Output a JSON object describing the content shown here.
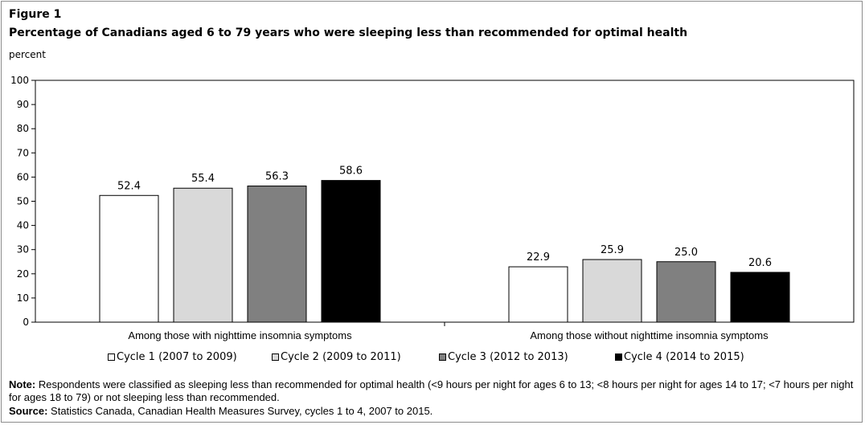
{
  "figure": {
    "label": "Figure 1",
    "title": "Percentage of Canadians aged 6 to 79 years who were sleeping less than recommended for optimal health",
    "unit": "percent"
  },
  "chart_data": {
    "type": "bar",
    "categories": [
      "Among those with nighttime insomnia symptoms",
      "Among those without nighttime insomnia symptoms"
    ],
    "series": [
      {
        "name": "Cycle 1 (2007 to 2009)",
        "values": [
          52.4,
          22.9
        ],
        "labels": [
          "52.4",
          "22.9"
        ],
        "color": "#ffffff"
      },
      {
        "name": "Cycle 2 (2009 to 2011)",
        "values": [
          55.4,
          25.9
        ],
        "labels": [
          "55.4",
          "25.9"
        ],
        "color": "#d9d9d9"
      },
      {
        "name": "Cycle 3 (2012 to 2013)",
        "values": [
          56.3,
          25.0
        ],
        "labels": [
          "56.3",
          "25.0"
        ],
        "color": "#808080"
      },
      {
        "name": "Cycle 4 (2014 to 2015)",
        "values": [
          58.6,
          20.6
        ],
        "labels": [
          "58.6",
          "20.6"
        ],
        "color": "#000000"
      }
    ],
    "ylim": [
      0,
      100
    ],
    "yticks": [
      "0",
      "10",
      "20",
      "30",
      "40",
      "50",
      "60",
      "70",
      "80",
      "90",
      "100"
    ],
    "ylabel": "percent",
    "grid": false,
    "legend_position": "bottom"
  },
  "note": {
    "label": "Note:",
    "text": "Respondents were classified as sleeping less than recommended for optimal health (<9 hours per night for ages 6 to 13; <8 hours per night for ages 14 to 17; <7 hours per night for ages 18 to 79) or not sleeping less than recommended."
  },
  "source": {
    "label": "Source:",
    "text": "Statistics Canada, Canadian Health Measures Survey, cycles 1 to 4, 2007 to 2015."
  }
}
